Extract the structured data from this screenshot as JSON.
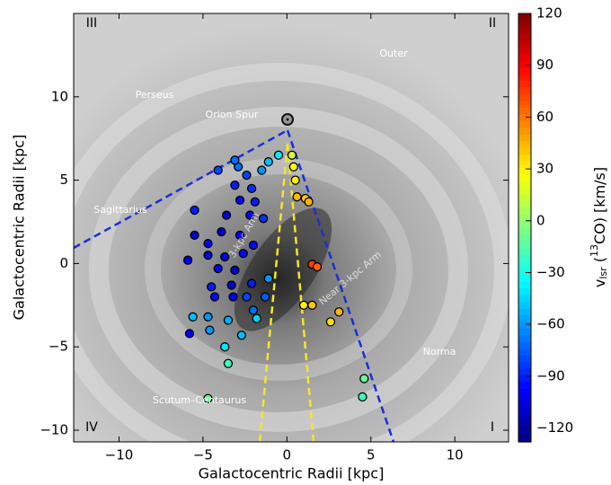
{
  "chart_data": {
    "type": "scatter",
    "xlabel": "Galactocentric Radii [kpc]",
    "ylabel": "Galactocentric Radii [kpc]",
    "xlim": [
      -12.7,
      13.2
    ],
    "ylim": [
      -10.7,
      15
    ],
    "xticks": [
      {
        "value": -10,
        "label": "−10"
      },
      {
        "value": -5,
        "label": "−5"
      },
      0,
      5,
      10
    ],
    "yticks": [
      {
        "value": -10,
        "label": "−10"
      },
      {
        "value": -5,
        "label": "−5"
      },
      0,
      5,
      10
    ],
    "clim": [
      -128,
      120
    ],
    "cticks": [
      {
        "value": -120,
        "label": "−120"
      },
      {
        "value": -90,
        "label": "−90"
      },
      {
        "value": -60,
        "label": "−60"
      },
      {
        "value": -30,
        "label": "−30"
      },
      0,
      30,
      60,
      90,
      120
    ],
    "colormap": "jet",
    "colorbar_label": {
      "main": "v",
      "sub": "lsr",
      "open": " (",
      "sup": "13",
      "rest": "CO) [km/s]"
    },
    "annotations": [
      "Outer",
      "Perseus",
      "Orion Spur",
      "Sagittarius",
      "Norma",
      "Scutum–Centaurus",
      "3-kpc Arm",
      "Near 3-kpc Arm"
    ],
    "quadrants": [
      "III",
      "II",
      "IV",
      "I"
    ],
    "series": [
      {
        "name": "clouds",
        "x": [
          -4.7,
          -3.5,
          -2.7,
          -5.8,
          -4.6,
          -3.7,
          -5.6,
          -4.7,
          -3.5,
          -1.8,
          -3.2,
          -4.3,
          -2.4,
          -1.3,
          -2.0,
          -4.5,
          -3.3,
          -2.1,
          -1.1,
          -5.9,
          -4.1,
          -3.1,
          -3.7,
          -4.7,
          -2.6,
          -5.5,
          -4.7,
          -3.9,
          -2.8,
          -2.0,
          -3.6,
          -2.2,
          -1.4,
          -2.8,
          -1.9,
          -3.1,
          -2.1,
          -4.1,
          -2.9,
          -2.4,
          -1.5,
          -1.1,
          -0.5,
          -3.1,
          -5.5,
          0.5,
          0.6,
          1.1,
          1.3,
          0.4,
          0.3,
          1.5,
          1.8,
          1.0,
          1.5,
          3.1,
          2.6,
          4.6,
          4.5
        ],
        "values": [
          -8.1,
          -6.0,
          -4.3,
          -4.2,
          -4.0,
          -5.0,
          -3.2,
          -3.2,
          -3.4,
          -3.3,
          -2.0,
          -2.0,
          -2.0,
          -2.0,
          -2.8,
          -1.4,
          -1.3,
          -1.2,
          -0.9,
          0.2,
          -0.3,
          -0.4,
          0.4,
          0.5,
          0.6,
          1.7,
          1.2,
          1.9,
          1.7,
          1.1,
          2.9,
          2.9,
          2.7,
          3.8,
          3.7,
          4.7,
          4.5,
          5.6,
          5.8,
          5.3,
          5.6,
          6.1,
          6.5,
          6.2,
          3.2,
          5.0,
          4.0,
          3.9,
          3.7,
          5.8,
          6.5,
          -0.05,
          -0.2,
          -2.5,
          -2.5,
          -2.9,
          -3.5,
          -6.9,
          -8.0
        ],
        "v": [
          -10,
          -20,
          -50,
          -100,
          -60,
          -40,
          -50,
          -60,
          -55,
          -45,
          -100,
          -95,
          -80,
          -75,
          -70,
          -90,
          -110,
          -90,
          -60,
          -100,
          -100,
          -110,
          -105,
          -105,
          -95,
          -110,
          -100,
          -110,
          -100,
          -95,
          -110,
          -95,
          -85,
          -100,
          -90,
          -90,
          -85,
          -80,
          -70,
          -80,
          -60,
          -50,
          -40,
          -70,
          -90,
          30,
          45,
          40,
          45,
          25,
          15,
          75,
          65,
          30,
          40,
          45,
          35,
          -10,
          -20
        ]
      }
    ]
  }
}
